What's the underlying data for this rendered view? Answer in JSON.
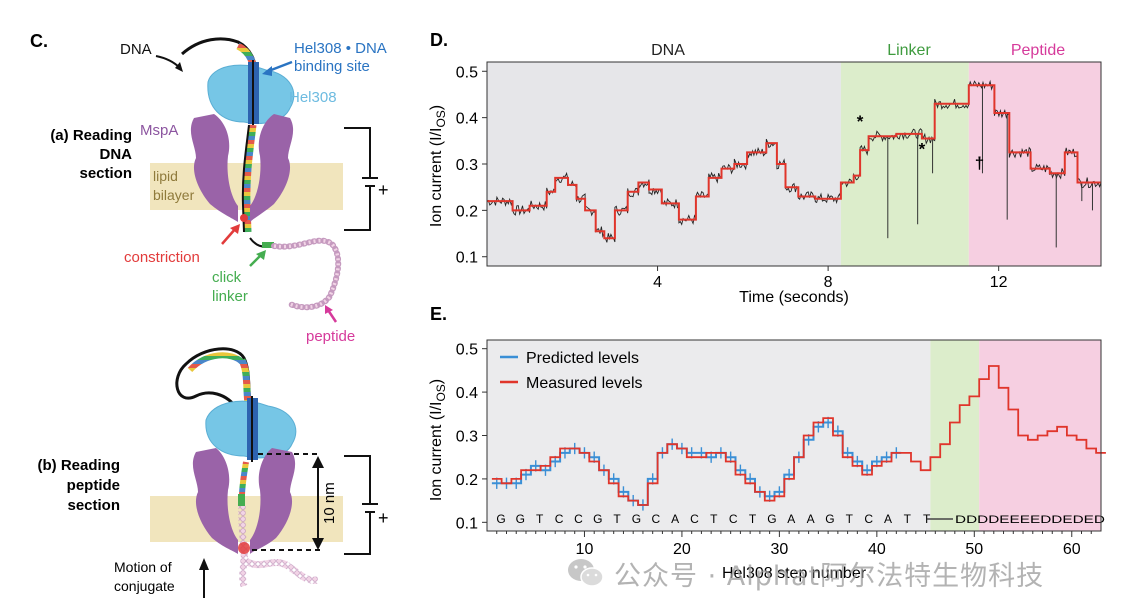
{
  "panel_c": {
    "letter": "C.",
    "a_label": [
      "(a) Reading",
      "DNA",
      "section"
    ],
    "b_label": [
      "(b) Reading",
      "peptide",
      "section"
    ],
    "dna": "DNA",
    "hel308_dna": [
      "Hel308 • DNA",
      "binding site"
    ],
    "hel308": "Hel308",
    "mspa": "MspA",
    "lipid": [
      "lipid",
      "bilayer"
    ],
    "constriction": "constriction",
    "click_linker": [
      "click",
      "linker"
    ],
    "peptide": "peptide",
    "motion": [
      "Motion of",
      "conjugate"
    ],
    "ten_nm": "10 nm",
    "plus_a": "+",
    "plus_b": "+",
    "colors": {
      "helicase": "#76c6e6",
      "pore": "#9a63a8",
      "lipid": "#f1e5bd",
      "red": "#e23b3b",
      "green": "#45ad50",
      "magenta": "#d63a9b"
    }
  },
  "panel_d": {
    "letter": "D.",
    "region_labels": [
      "DNA",
      "Linker",
      "Peptide"
    ],
    "markers": [
      "*",
      "*",
      "†"
    ],
    "chart_data": {
      "type": "line",
      "xlabel": "Time (seconds)",
      "ylabel": "Ion current (I/I",
      "ylabel_sub": "OS",
      "ylabel_close": ")",
      "xlim": [
        0,
        14.4
      ],
      "ylim": [
        0.08,
        0.52
      ],
      "xticks": [
        4,
        8,
        12
      ],
      "yticks": [
        0.1,
        0.2,
        0.3,
        0.4,
        0.5
      ],
      "regions": [
        {
          "name": "DNA",
          "x": [
            0,
            8.3
          ],
          "color": "#e6e6e9"
        },
        {
          "name": "Linker",
          "x": [
            8.3,
            11.3
          ],
          "color": "#dcedcb"
        },
        {
          "name": "Peptide",
          "x": [
            11.3,
            14.4
          ],
          "color": "#f6cfe1"
        }
      ],
      "series": [
        {
          "color": "#e0352b",
          "levels": [
            [
              0.0,
              0.6,
              0.22
            ],
            [
              0.6,
              1.0,
              0.2
            ],
            [
              1.0,
              1.4,
              0.21
            ],
            [
              1.4,
              1.6,
              0.24
            ],
            [
              1.6,
              1.9,
              0.27
            ],
            [
              1.9,
              2.1,
              0.255
            ],
            [
              2.1,
              2.3,
              0.225
            ],
            [
              2.3,
              2.55,
              0.2
            ],
            [
              2.55,
              2.75,
              0.155
            ],
            [
              2.75,
              3.0,
              0.14
            ],
            [
              3.0,
              3.3,
              0.2
            ],
            [
              3.3,
              3.55,
              0.24
            ],
            [
              3.55,
              3.8,
              0.26
            ],
            [
              3.8,
              4.1,
              0.245
            ],
            [
              4.1,
              4.5,
              0.215
            ],
            [
              4.5,
              4.9,
              0.18
            ],
            [
              4.9,
              5.2,
              0.23
            ],
            [
              5.2,
              5.5,
              0.27
            ],
            [
              5.5,
              5.8,
              0.29
            ],
            [
              5.8,
              6.1,
              0.3
            ],
            [
              6.1,
              6.55,
              0.325
            ],
            [
              6.55,
              6.8,
              0.345
            ],
            [
              6.8,
              7.0,
              0.3
            ],
            [
              7.0,
              7.3,
              0.25
            ],
            [
              7.3,
              7.7,
              0.23
            ],
            [
              7.7,
              8.3,
              0.225
            ],
            [
              8.3,
              8.6,
              0.26
            ],
            [
              8.6,
              8.75,
              0.275
            ],
            [
              8.75,
              8.95,
              0.33
            ],
            [
              8.95,
              9.6,
              0.36
            ],
            [
              9.6,
              10.2,
              0.365
            ],
            [
              10.2,
              10.5,
              0.355
            ],
            [
              10.5,
              11.3,
              0.43
            ],
            [
              11.3,
              11.9,
              0.47
            ],
            [
              11.9,
              12.25,
              0.41
            ],
            [
              12.25,
              12.75,
              0.325
            ],
            [
              12.75,
              13.2,
              0.29
            ],
            [
              13.2,
              13.55,
              0.28
            ],
            [
              13.55,
              13.85,
              0.325
            ],
            [
              13.85,
              14.4,
              0.26
            ]
          ],
          "spikes": [
            [
              9.4,
              0.14
            ],
            [
              10.1,
              0.17
            ],
            [
              10.45,
              0.28
            ],
            [
              11.62,
              0.28
            ],
            [
              12.2,
              0.18
            ],
            [
              13.35,
              0.12
            ],
            [
              13.95,
              0.22
            ],
            [
              14.2,
              0.2
            ]
          ]
        }
      ]
    },
    "marker_positions": [
      [
        8.75,
        0.38
      ],
      [
        10.2,
        0.32
      ],
      [
        11.55,
        0.29
      ]
    ]
  },
  "panel_e": {
    "letter": "E.",
    "legend": [
      "Predicted levels",
      "Measured levels"
    ],
    "sequence": [
      "G",
      "G",
      "T",
      "C",
      "C",
      "G",
      "T",
      "G",
      "C",
      "A",
      "C",
      "T",
      "C",
      "T",
      "G",
      "A",
      "A",
      "G",
      "T",
      "C",
      "A",
      "T",
      "T"
    ],
    "peptide_seq": "DDDDEEEEDDEDED",
    "chart_data": {
      "type": "line",
      "xlabel": "Hel308 step number",
      "ylabel": "Ion current (I/I",
      "ylabel_sub": "OS",
      "ylabel_close": ")",
      "xlim": [
        0,
        63
      ],
      "ylim": [
        0.08,
        0.52
      ],
      "xticks": [
        10,
        20,
        30,
        40,
        50,
        60
      ],
      "yticks": [
        0.1,
        0.2,
        0.3,
        0.4,
        0.5
      ],
      "regions": [
        {
          "name": "DNA",
          "x": [
            0,
            45.5
          ],
          "color": "#ebebed"
        },
        {
          "name": "Linker",
          "x": [
            45.5,
            50.5
          ],
          "color": "#dcedcb"
        },
        {
          "name": "Peptide",
          "x": [
            50.5,
            63
          ],
          "color": "#f6cfe1"
        }
      ],
      "series": [
        {
          "name": "Predicted levels",
          "color": "#3a8fd6",
          "values": [
            0.19,
            0.19,
            0.19,
            0.21,
            0.23,
            0.22,
            0.24,
            0.26,
            0.27,
            0.26,
            0.25,
            0.22,
            0.2,
            0.17,
            0.15,
            0.14,
            0.2,
            0.26,
            0.28,
            0.27,
            0.26,
            0.26,
            0.25,
            0.26,
            0.25,
            0.22,
            0.2,
            0.17,
            0.16,
            0.17,
            0.21,
            0.25,
            0.29,
            0.32,
            0.33,
            0.31,
            0.26,
            0.24,
            0.22,
            0.24,
            0.25,
            0.26
          ]
        },
        {
          "name": "Measured levels",
          "color": "#e0352b",
          "values": [
            0.2,
            0.19,
            0.2,
            0.22,
            0.22,
            0.23,
            0.25,
            0.27,
            0.27,
            0.26,
            0.24,
            0.22,
            0.19,
            0.16,
            0.15,
            0.14,
            0.19,
            0.26,
            0.28,
            0.27,
            0.25,
            0.25,
            0.26,
            0.26,
            0.24,
            0.21,
            0.19,
            0.17,
            0.15,
            0.16,
            0.2,
            0.25,
            0.3,
            0.33,
            0.34,
            0.3,
            0.25,
            0.23,
            0.21,
            0.23,
            0.24,
            0.26,
            0.26,
            0.24,
            0.22,
            0.25,
            0.28,
            0.33,
            0.37,
            0.39,
            0.43,
            0.46,
            0.41,
            0.36,
            0.3,
            0.29,
            0.3,
            0.31,
            0.32,
            0.3,
            0.29,
            0.27,
            0.26
          ]
        }
      ]
    }
  },
  "watermark": {
    "text": "公众号 · Alphat阿尔法特生物科技",
    "icon": "wechat-icon"
  }
}
